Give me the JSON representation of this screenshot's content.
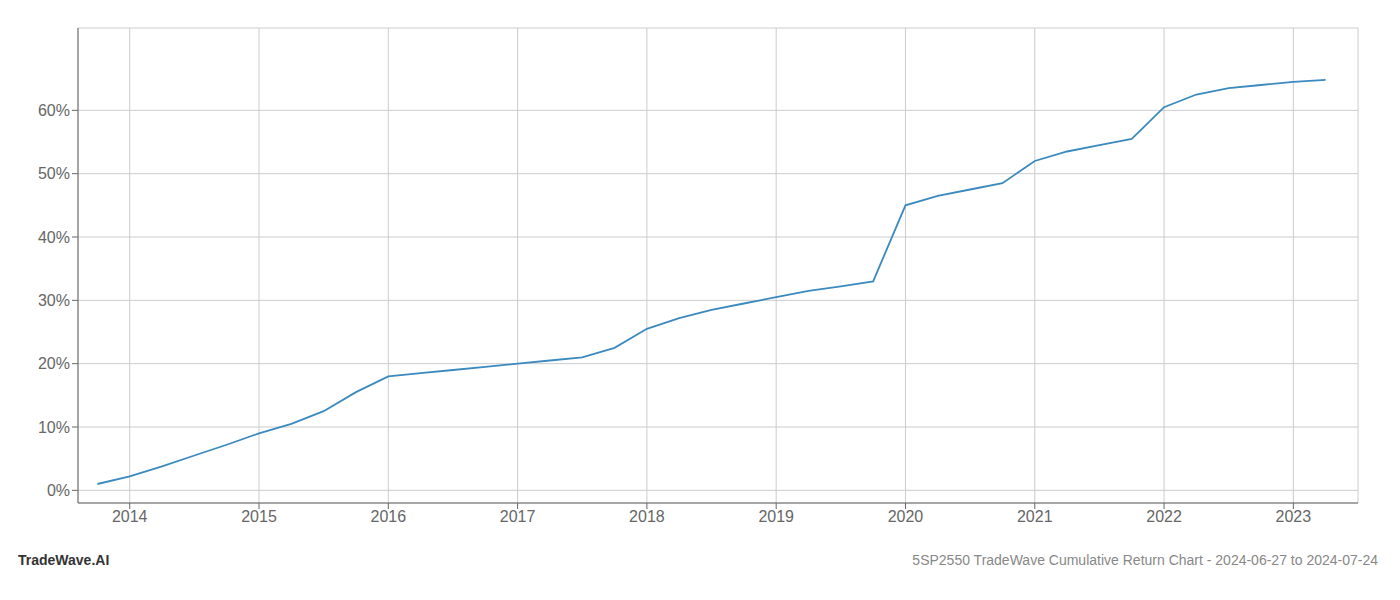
{
  "chart_data": {
    "type": "line",
    "x": [
      2013.75,
      2014.0,
      2014.25,
      2014.5,
      2014.75,
      2015.0,
      2015.25,
      2015.5,
      2015.75,
      2016.0,
      2016.25,
      2016.5,
      2016.75,
      2017.0,
      2017.25,
      2017.5,
      2017.75,
      2018.0,
      2018.25,
      2018.5,
      2018.75,
      2019.0,
      2019.25,
      2019.5,
      2019.75,
      2020.0,
      2020.25,
      2020.5,
      2020.75,
      2021.0,
      2021.25,
      2021.5,
      2021.75,
      2022.0,
      2022.25,
      2022.5,
      2022.75,
      2023.0,
      2023.25
    ],
    "values": [
      0.01,
      0.022,
      0.038,
      0.055,
      0.072,
      0.09,
      0.105,
      0.125,
      0.155,
      0.18,
      0.185,
      0.19,
      0.195,
      0.2,
      0.205,
      0.21,
      0.225,
      0.255,
      0.272,
      0.285,
      0.295,
      0.305,
      0.315,
      0.322,
      0.33,
      0.45,
      0.465,
      0.475,
      0.485,
      0.52,
      0.535,
      0.545,
      0.555,
      0.605,
      0.625,
      0.635,
      0.64,
      0.645,
      0.648
    ],
    "color": "#3a8abf",
    "xlim": [
      2013.6,
      2023.5
    ],
    "xticks": [
      2014,
      2015,
      2016,
      2017,
      2018,
      2019,
      2020,
      2021,
      2022,
      2023
    ],
    "ylim": [
      -0.02,
      0.73
    ],
    "yticks": [
      {
        "value": 0.0,
        "label": "0%"
      },
      {
        "value": 0.1,
        "label": "10%"
      },
      {
        "value": 0.2,
        "label": "20%"
      },
      {
        "value": 0.3,
        "label": "30%"
      },
      {
        "value": 0.4,
        "label": "40%"
      },
      {
        "value": 0.5,
        "label": "50%"
      },
      {
        "value": 0.6,
        "label": "60%"
      }
    ],
    "grid": true,
    "annotations": [
      "TradeWave.AI",
      "5SP2550 TradeWave Cumulative Return Chart - 2024-06-27 to 2024-07-24"
    ]
  }
}
